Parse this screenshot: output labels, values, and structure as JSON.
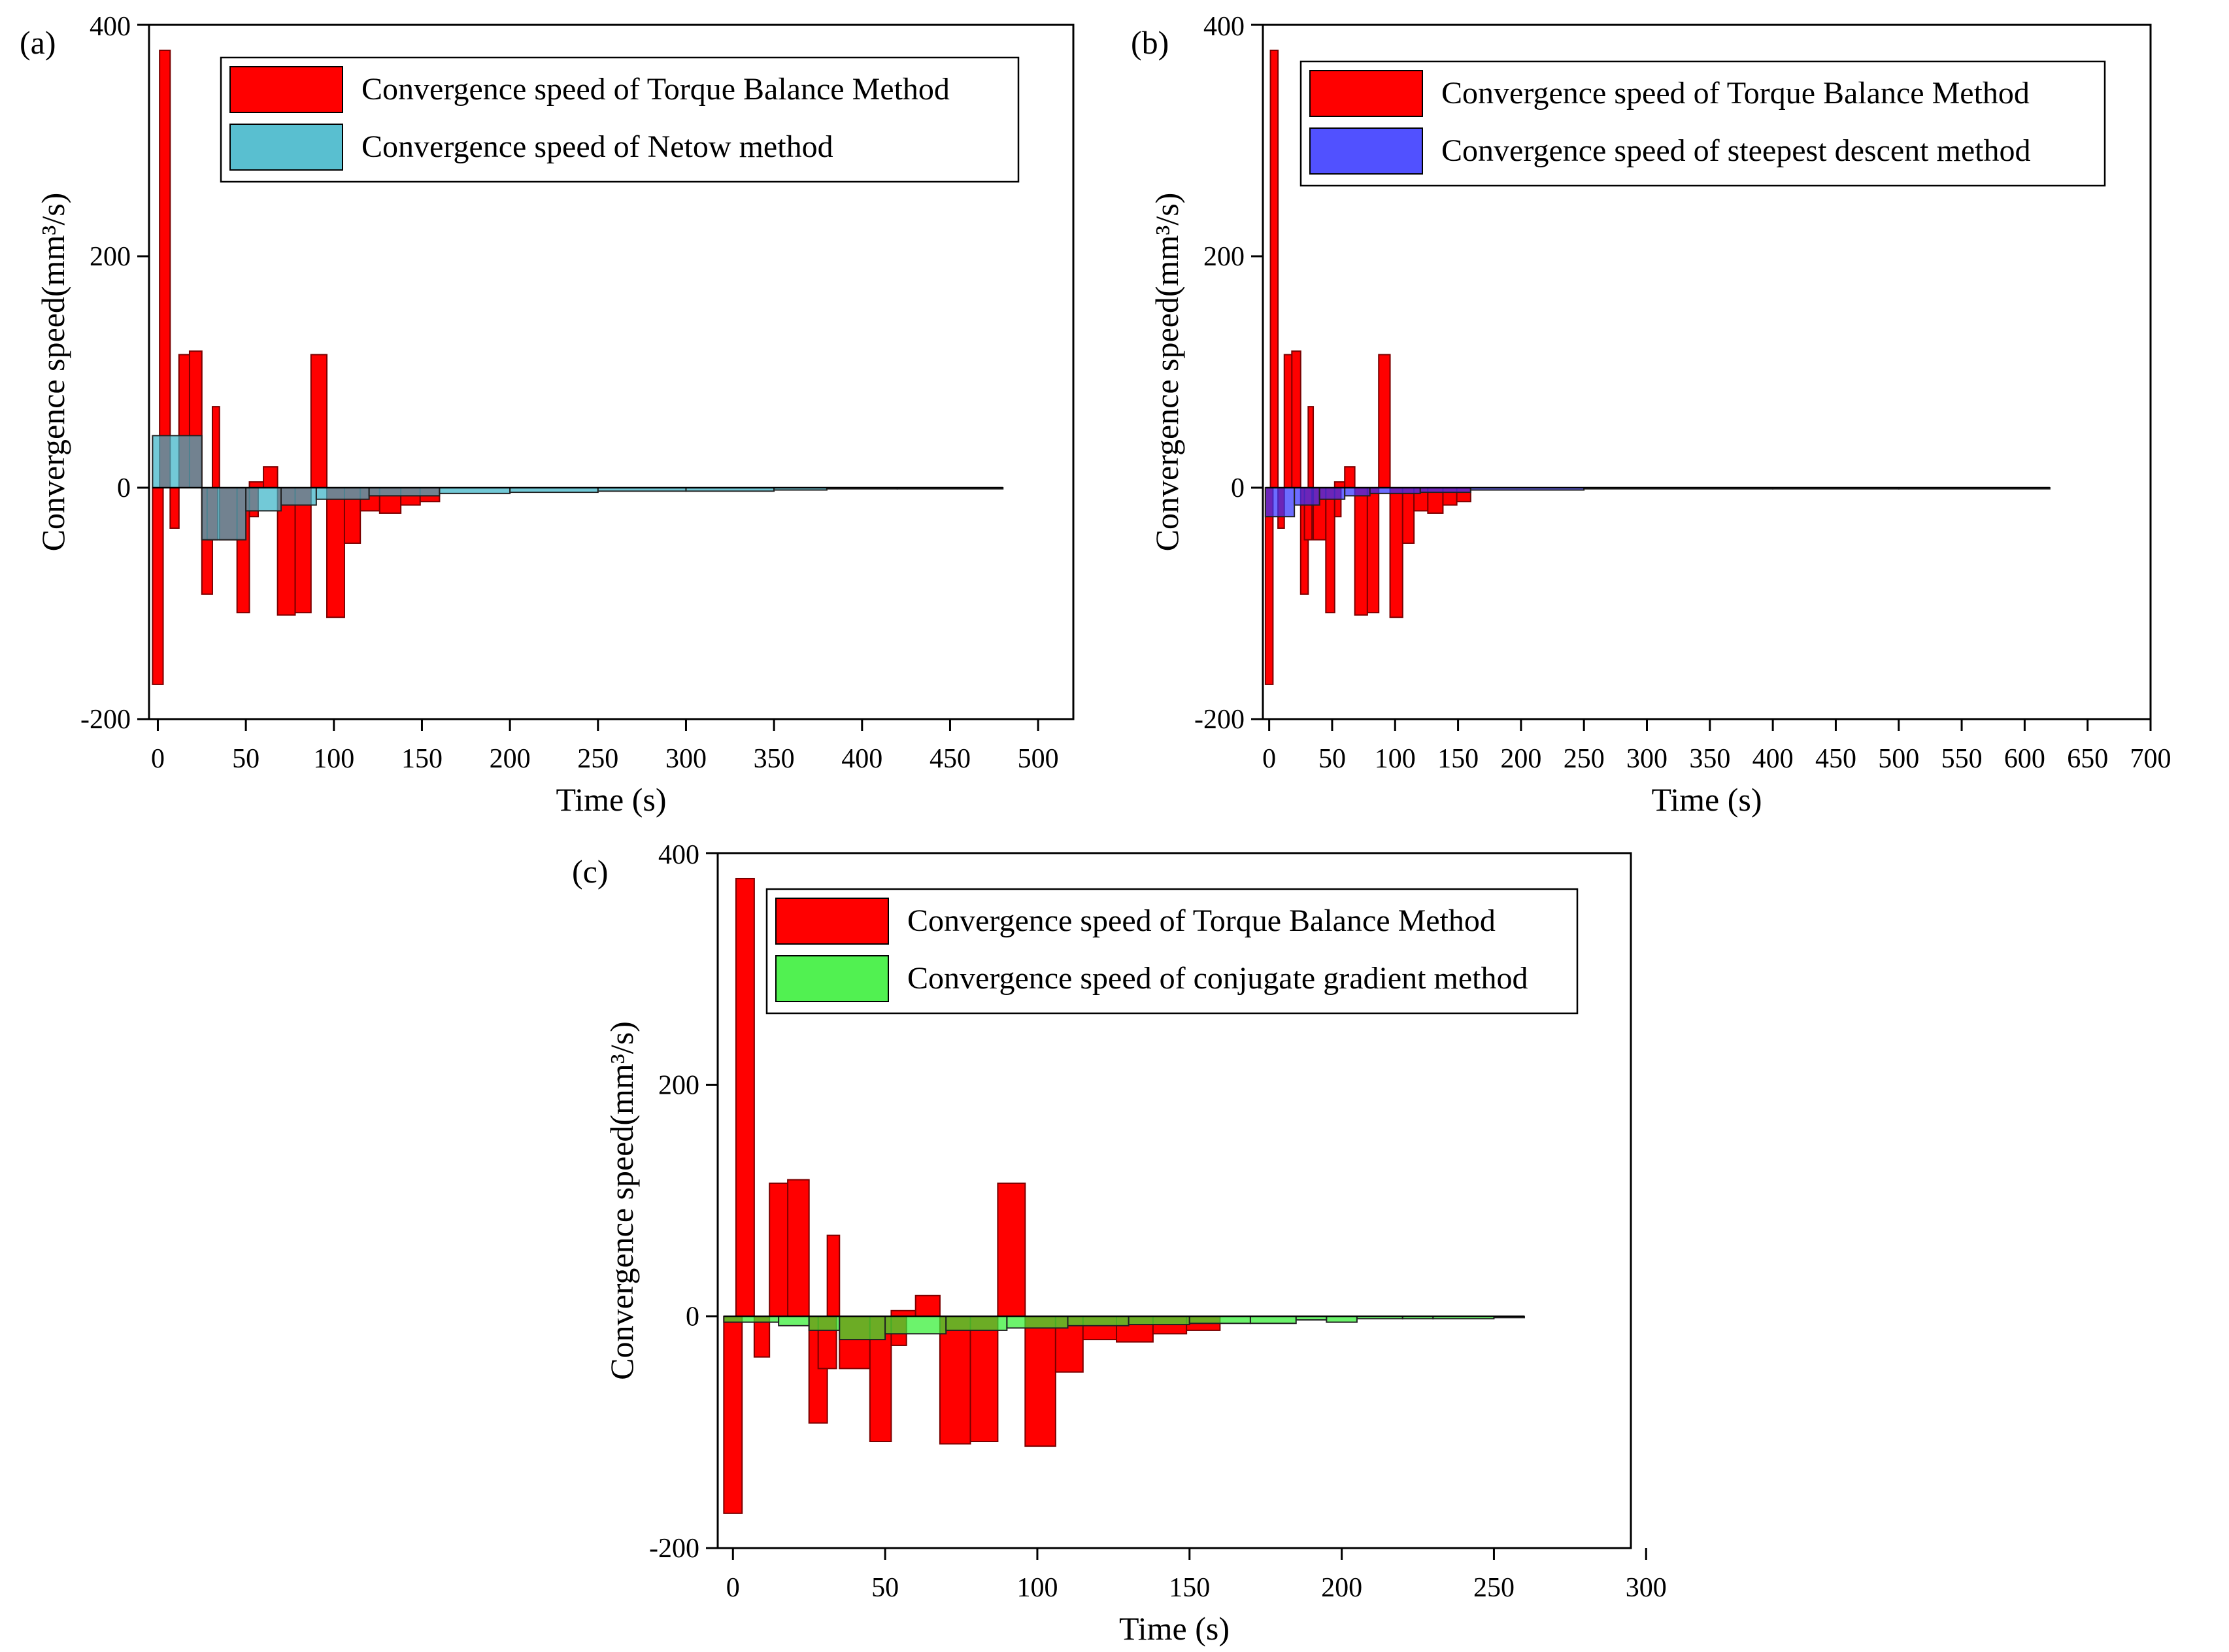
{
  "chart_data": [
    {
      "type": "bar",
      "panel_label": "(a)",
      "title": "",
      "xlabel": "Time (s)",
      "ylabel": "Convergence speed(mm³/s)",
      "xlim": [
        -5,
        520
      ],
      "ylim": [
        -200,
        400
      ],
      "xticks": [
        0,
        50,
        100,
        150,
        200,
        250,
        300,
        350,
        400,
        450,
        500
      ],
      "yticks": [
        -200,
        0,
        200,
        400
      ],
      "legend_position": "top-right",
      "series": [
        {
          "name": "Convergence speed of Torque Balance Method",
          "color": "#ff0000",
          "segments": [
            [
              -3,
              3,
              -170
            ],
            [
              1,
              7,
              378
            ],
            [
              7,
              12,
              -35
            ],
            [
              12,
              22,
              115
            ],
            [
              18,
              25,
              118
            ],
            [
              25,
              31,
              -92
            ],
            [
              28,
              34,
              -45
            ],
            [
              31,
              35,
              70
            ],
            [
              35,
              45,
              -45
            ],
            [
              45,
              52,
              -108
            ],
            [
              52,
              57,
              -25
            ],
            [
              52,
              60,
              5
            ],
            [
              60,
              68,
              18
            ],
            [
              68,
              78,
              -110
            ],
            [
              78,
              87,
              -108
            ],
            [
              87,
              96,
              115
            ],
            [
              96,
              106,
              -112
            ],
            [
              106,
              115,
              -48
            ],
            [
              115,
              126,
              -20
            ],
            [
              126,
              138,
              -22
            ],
            [
              138,
              149,
              -15
            ],
            [
              149,
              160,
              -12
            ]
          ]
        },
        {
          "name": "Convergence speed of Netow method",
          "color": "#3cb4c8",
          "segments": [
            [
              -3,
              25,
              45
            ],
            [
              25,
              50,
              -45
            ],
            [
              50,
              70,
              -20
            ],
            [
              70,
              90,
              -15
            ],
            [
              90,
              120,
              -10
            ],
            [
              120,
              160,
              -7
            ],
            [
              160,
              200,
              -5
            ],
            [
              200,
              250,
              -4
            ],
            [
              250,
              300,
              -3
            ],
            [
              300,
              350,
              -3
            ],
            [
              350,
              380,
              -2
            ],
            [
              380,
              420,
              -1
            ],
            [
              420,
              480,
              -1
            ]
          ]
        }
      ]
    },
    {
      "type": "bar",
      "panel_label": "(b)",
      "title": "",
      "xlabel": "Time (s)",
      "ylabel": "Convergence speed(mm³/s)",
      "xlim": [
        -5,
        700
      ],
      "ylim": [
        -200,
        400
      ],
      "xticks": [
        0,
        50,
        100,
        150,
        200,
        250,
        300,
        350,
        400,
        450,
        500,
        550,
        600,
        650,
        700
      ],
      "yticks": [
        -200,
        0,
        200,
        400
      ],
      "legend_position": "top-right",
      "series": [
        {
          "name": "Convergence speed of Torque Balance Method",
          "color": "#ff0000",
          "segments": [
            [
              -3,
              3,
              -170
            ],
            [
              1,
              7,
              378
            ],
            [
              7,
              12,
              -35
            ],
            [
              12,
              22,
              115
            ],
            [
              18,
              25,
              118
            ],
            [
              25,
              31,
              -92
            ],
            [
              28,
              34,
              -45
            ],
            [
              31,
              35,
              70
            ],
            [
              35,
              45,
              -45
            ],
            [
              45,
              52,
              -108
            ],
            [
              52,
              57,
              -25
            ],
            [
              52,
              60,
              5
            ],
            [
              60,
              68,
              18
            ],
            [
              68,
              78,
              -110
            ],
            [
              78,
              87,
              -108
            ],
            [
              87,
              96,
              115
            ],
            [
              96,
              106,
              -112
            ],
            [
              106,
              115,
              -48
            ],
            [
              115,
              126,
              -20
            ],
            [
              126,
              138,
              -22
            ],
            [
              138,
              149,
              -15
            ],
            [
              149,
              160,
              -12
            ]
          ]
        },
        {
          "name": "Convergence speed of steepest descent method",
          "color": "#3333ff",
          "segments": [
            [
              -3,
              20,
              -25
            ],
            [
              20,
              40,
              -15
            ],
            [
              40,
              60,
              -10
            ],
            [
              60,
              80,
              -7
            ],
            [
              80,
              120,
              -5
            ],
            [
              120,
              160,
              -4
            ],
            [
              160,
              250,
              -2
            ],
            [
              250,
              400,
              -1
            ],
            [
              400,
              500,
              -1
            ],
            [
              500,
              620,
              -1
            ]
          ]
        }
      ]
    },
    {
      "type": "bar",
      "panel_label": "(c)",
      "title": "",
      "xlabel": "Time (s)",
      "ylabel": "Convergence speed(mm³/s)",
      "xlim": [
        -5,
        295
      ],
      "ylim": [
        -200,
        400
      ],
      "xticks": [
        0,
        50,
        100,
        150,
        200,
        250,
        300
      ],
      "yticks": [
        -200,
        0,
        200,
        400
      ],
      "legend_position": "top-right",
      "series": [
        {
          "name": "Convergence speed of Torque Balance Method",
          "color": "#ff0000",
          "segments": [
            [
              -3,
              3,
              -170
            ],
            [
              1,
              7,
              378
            ],
            [
              7,
              12,
              -35
            ],
            [
              12,
              22,
              115
            ],
            [
              18,
              25,
              118
            ],
            [
              25,
              31,
              -92
            ],
            [
              28,
              34,
              -45
            ],
            [
              31,
              35,
              70
            ],
            [
              35,
              45,
              -45
            ],
            [
              45,
              52,
              -108
            ],
            [
              52,
              57,
              -25
            ],
            [
              52,
              60,
              5
            ],
            [
              60,
              68,
              18
            ],
            [
              68,
              78,
              -110
            ],
            [
              78,
              87,
              -108
            ],
            [
              87,
              96,
              115
            ],
            [
              96,
              106,
              -112
            ],
            [
              106,
              115,
              -48
            ],
            [
              115,
              126,
              -20
            ],
            [
              126,
              138,
              -22
            ],
            [
              138,
              149,
              -15
            ],
            [
              149,
              160,
              -12
            ]
          ]
        },
        {
          "name": "Convergence speed of conjugate gradient method",
          "color": "#33ee33",
          "segments": [
            [
              -3,
              15,
              -5
            ],
            [
              15,
              25,
              -8
            ],
            [
              25,
              35,
              -12
            ],
            [
              35,
              50,
              -20
            ],
            [
              50,
              70,
              -15
            ],
            [
              70,
              90,
              -12
            ],
            [
              90,
              110,
              -10
            ],
            [
              110,
              130,
              -8
            ],
            [
              130,
              150,
              -7
            ],
            [
              150,
              170,
              -6
            ],
            [
              170,
              185,
              -6
            ],
            [
              185,
              195,
              -3
            ],
            [
              195,
              205,
              -5
            ],
            [
              205,
              220,
              -2
            ],
            [
              220,
              230,
              -2
            ],
            [
              230,
              250,
              -2
            ],
            [
              250,
              260,
              -1
            ]
          ]
        }
      ]
    }
  ]
}
